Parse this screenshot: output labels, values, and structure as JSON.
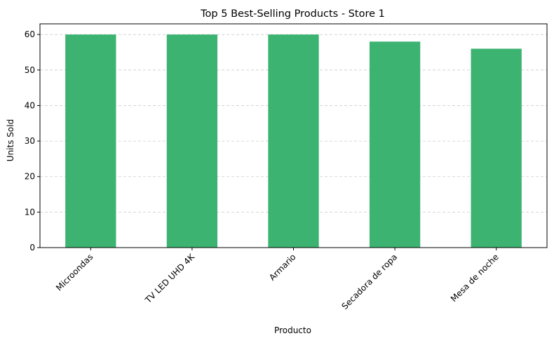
{
  "chart_data": {
    "type": "bar",
    "title": "Top 5 Best-Selling Products - Store 1",
    "xlabel": "Producto",
    "ylabel": "Units Sold",
    "categories": [
      "Microondas",
      "TV LED UHD 4K",
      "Armario",
      "Secadora de ropa",
      "Mesa de noche"
    ],
    "values": [
      60,
      60,
      60,
      58,
      56
    ],
    "ylim": [
      0,
      63
    ],
    "yticks": [
      0,
      10,
      20,
      30,
      40,
      50,
      60
    ],
    "bar_color": "#3cb371",
    "grid": "y, dashed",
    "legend": "none"
  }
}
